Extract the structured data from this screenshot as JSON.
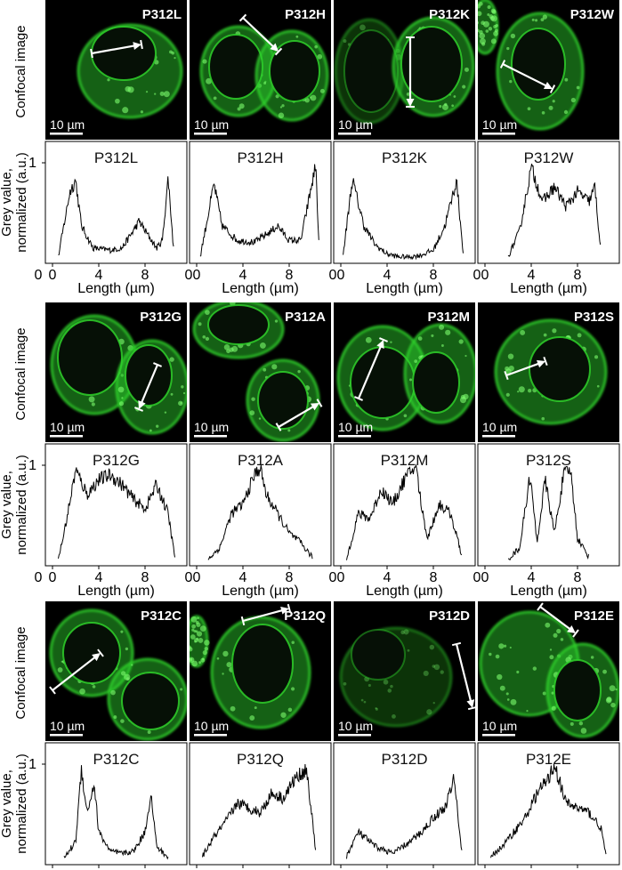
{
  "figure": {
    "row_label_image": "Confocal image",
    "row_label_plot_line1": "Grey value,",
    "row_label_plot_line2": "normalized (a.u.)",
    "x_axis_label": "Length (µm)",
    "scale_bar_label": "10 µm",
    "y_tick_labels": [
      "1",
      "0"
    ],
    "x_tick_labels": [
      "0",
      "4",
      "8"
    ],
    "cell_color": "#2fd02a",
    "image_background": "#000000",
    "line_color": "#000000"
  },
  "blocks": [
    {
      "panels": [
        {
          "label": "P312L",
          "plot_title": "P312L"
        },
        {
          "label": "P312H",
          "plot_title": "P312H"
        },
        {
          "label": "P312K",
          "plot_title": "P312K"
        },
        {
          "label": "P312W",
          "plot_title": "P312W"
        }
      ]
    },
    {
      "panels": [
        {
          "label": "P312G",
          "plot_title": "P312G"
        },
        {
          "label": "P312A",
          "plot_title": "P312A"
        },
        {
          "label": "P312M",
          "plot_title": "P312M"
        },
        {
          "label": "P312S",
          "plot_title": "P312S"
        }
      ]
    },
    {
      "panels": [
        {
          "label": "P312C",
          "plot_title": "P312C"
        },
        {
          "label": "P312Q",
          "plot_title": "P312Q"
        },
        {
          "label": "P312D",
          "plot_title": "P312D"
        },
        {
          "label": "P312E",
          "plot_title": "P312E"
        }
      ]
    }
  ],
  "chart_data": {
    "type": "line",
    "xlabel": "Length (µm)",
    "ylabel": "Grey value, normalized (a.u.)",
    "ylim": [
      0,
      1
    ],
    "xticks": [
      0,
      4,
      8
    ],
    "panels": [
      {
        "name": "P312L",
        "xlim": [
          0,
          11
        ],
        "x": [
          0.5,
          1.5,
          2.0,
          2.5,
          3.5,
          5,
          6,
          7,
          7.5,
          8,
          9,
          9.5,
          10,
          10.5
        ],
        "y": [
          0.03,
          0.7,
          0.82,
          0.35,
          0.12,
          0.1,
          0.12,
          0.3,
          0.4,
          0.3,
          0.12,
          0.2,
          0.85,
          0.05
        ]
      },
      {
        "name": "P312H",
        "xlim": [
          0,
          11
        ],
        "x": [
          0.3,
          1.5,
          2.2,
          3.5,
          5,
          6.5,
          7,
          8,
          9,
          10.3,
          10.6
        ],
        "y": [
          0.03,
          0.78,
          0.35,
          0.2,
          0.18,
          0.3,
          0.35,
          0.2,
          0.2,
          0.98,
          0.05
        ]
      },
      {
        "name": "P312K",
        "xlim": [
          0,
          11
        ],
        "x": [
          0.2,
          1,
          2,
          3,
          4,
          5,
          6,
          7,
          8,
          9,
          10,
          10.6
        ],
        "y": [
          0.05,
          0.83,
          0.35,
          0.15,
          0.06,
          0.03,
          0.03,
          0.05,
          0.1,
          0.35,
          0.82,
          0.05
        ]
      },
      {
        "name": "P312W",
        "xlim": [
          0,
          11
        ],
        "x": [
          2,
          3,
          4,
          5,
          6,
          7,
          8,
          9,
          9.5,
          10
        ],
        "y": [
          0.03,
          0.3,
          0.95,
          0.6,
          0.75,
          0.55,
          0.7,
          0.6,
          0.75,
          0.1
        ]
      },
      {
        "name": "P312G",
        "xlim": [
          0,
          11
        ],
        "x": [
          0.5,
          1,
          2,
          3,
          4,
          5,
          6,
          7,
          8,
          9,
          10,
          10.6
        ],
        "y": [
          0.03,
          0.3,
          0.95,
          0.7,
          0.85,
          0.9,
          0.8,
          0.65,
          0.55,
          0.8,
          0.5,
          0.03
        ]
      },
      {
        "name": "P312A",
        "xlim": [
          0,
          11
        ],
        "x": [
          1,
          2,
          3,
          4,
          5,
          5.5,
          6,
          7,
          8,
          9,
          10
        ],
        "y": [
          0.03,
          0.15,
          0.5,
          0.6,
          0.9,
          0.98,
          0.7,
          0.5,
          0.3,
          0.2,
          0.05
        ]
      },
      {
        "name": "P312M",
        "xlim": [
          0,
          11
        ],
        "x": [
          0.5,
          1.5,
          2.5,
          3.5,
          4.5,
          5.5,
          6.5,
          7,
          7.5,
          8.5,
          9.5,
          10.5
        ],
        "y": [
          0.03,
          0.5,
          0.45,
          0.75,
          0.6,
          0.85,
          1.0,
          0.55,
          0.25,
          0.6,
          0.5,
          0.05
        ]
      },
      {
        "name": "P312S",
        "xlim": [
          0,
          11
        ],
        "x": [
          2,
          3,
          3.9,
          4.5,
          5.2,
          6,
          6.8,
          7.4,
          8,
          9
        ],
        "y": [
          0.03,
          0.15,
          0.9,
          0.2,
          0.85,
          0.3,
          0.9,
          0.95,
          0.25,
          0.05
        ]
      },
      {
        "name": "P312C",
        "xlim": [
          0,
          11
        ],
        "x": [
          1,
          2,
          2.5,
          3,
          3.6,
          4,
          5,
          6,
          7,
          8,
          8.5,
          9,
          10
        ],
        "y": [
          0.03,
          0.2,
          0.95,
          0.5,
          0.8,
          0.3,
          0.1,
          0.08,
          0.1,
          0.3,
          0.7,
          0.15,
          0.03
        ]
      },
      {
        "name": "P312Q",
        "xlim": [
          0,
          11
        ],
        "x": [
          0.5,
          1.5,
          2.5,
          3.5,
          4.5,
          5.5,
          6.5,
          7.5,
          8.5,
          9.5,
          10.3
        ],
        "y": [
          0.05,
          0.25,
          0.4,
          0.6,
          0.55,
          0.5,
          0.7,
          0.65,
          0.85,
          0.95,
          0.1
        ]
      },
      {
        "name": "P312D",
        "xlim": [
          0,
          11
        ],
        "x": [
          0.5,
          1.5,
          3,
          4.5,
          6,
          7,
          8,
          9,
          9.8,
          10.5
        ],
        "y": [
          0.05,
          0.3,
          0.15,
          0.08,
          0.2,
          0.3,
          0.45,
          0.55,
          0.85,
          0.05
        ]
      },
      {
        "name": "P312E",
        "xlim": [
          0,
          11
        ],
        "x": [
          0.5,
          1.5,
          2.5,
          3.5,
          4.5,
          5.5,
          6,
          7,
          8,
          9,
          10,
          10.5
        ],
        "y": [
          0.05,
          0.15,
          0.3,
          0.45,
          0.7,
          0.85,
          1.0,
          0.6,
          0.55,
          0.5,
          0.35,
          0.05
        ]
      }
    ]
  }
}
